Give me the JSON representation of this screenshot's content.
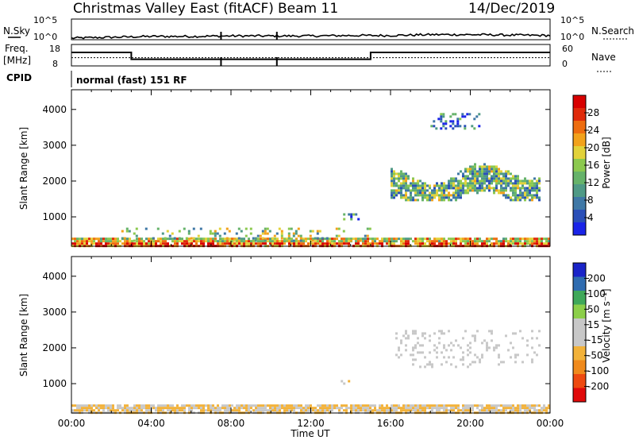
{
  "header": {
    "station": "Christmas Valley East (fitACF)",
    "beam": "Beam 11",
    "date": "14/Dec/2019"
  },
  "params": {
    "nsky_label": "N.Sky",
    "nsearch_label": "N.Search",
    "freq_label": "Freq.",
    "freq_unit": "[MHz]",
    "cpid_label": "CPID",
    "nave_label": "Nave",
    "cpid_value": "normal (fast) 151 RF",
    "noise_ticks": [
      "10^5",
      "10^0"
    ],
    "noise_right_ticks": [
      "10^5",
      "10^0"
    ],
    "freq_ticks": [
      "18",
      "8"
    ],
    "nave_ticks": [
      "60",
      "0"
    ]
  },
  "colors": {
    "power_scale": [
      "#1a24e8",
      "#2a4fb8",
      "#3f78a6",
      "#4f9a86",
      "#66b36a",
      "#8cc94f",
      "#e2d23a",
      "#f2a21c",
      "#ee6d10",
      "#e02a0a",
      "#d80000"
    ],
    "velocity_scale": [
      "#e00a0a",
      "#ee4a10",
      "#f08a1c",
      "#f2b23a",
      "#c8c8c8",
      "#c8c8c8",
      "#8ccf4a",
      "#3fa85a",
      "#2f6cb0",
      "#1a24c8"
    ],
    "ground_grey": "#c0c0c0"
  },
  "chart_data": [
    {
      "type": "line",
      "name": "noise",
      "x_range": [
        0,
        24
      ],
      "description_series": [
        {
          "name": "N.Sky",
          "x": [
            0,
            2,
            4,
            6,
            8,
            10,
            12,
            14,
            16,
            18,
            20,
            22,
            24
          ],
          "y": [
            1.0,
            1.2,
            1.4,
            1.4,
            1.5,
            1.5,
            1.5,
            1.6,
            1.6,
            1.8,
            1.8,
            1.7,
            1.6
          ]
        },
        {
          "name": "N.Search",
          "x": [
            0,
            24
          ],
          "y": [
            1.0,
            1.0
          ]
        }
      ]
    },
    {
      "type": "line",
      "name": "frequency",
      "x_range": [
        0,
        24
      ],
      "series": [
        {
          "name": "Freq.",
          "x": [
            0,
            3.0,
            3.0,
            15.0,
            15.0,
            24
          ],
          "y": [
            14.5,
            14.5,
            10.8,
            10.8,
            14.5,
            14.5
          ]
        },
        {
          "name": "Nave",
          "x": [
            0,
            24
          ],
          "y": [
            22,
            22
          ]
        }
      ]
    },
    {
      "type": "heatmap",
      "title": "",
      "xlabel": "Time UT",
      "ylabel": "Slant Range [km]",
      "x_ticks": [
        "00:00",
        "04:00",
        "08:00",
        "12:00",
        "16:00",
        "20:00",
        "00:00"
      ],
      "y_ticks": [
        1000,
        2000,
        3000,
        4000
      ],
      "xlim": [
        0,
        24
      ],
      "ylim": [
        180,
        4550
      ],
      "colorbar": {
        "label": "Power [dB]",
        "ticks": [
          4,
          8,
          12,
          16,
          20,
          24,
          28
        ],
        "range": [
          0,
          30
        ]
      },
      "regions": [
        {
          "x": [
            0,
            24
          ],
          "y": [
            200,
            420
          ],
          "value": 18
        },
        {
          "x": [
            2.5,
            15
          ],
          "y": [
            350,
            700
          ],
          "value": 14
        },
        {
          "x": [
            16,
            23.5
          ],
          "y": [
            1500,
            2500
          ],
          "value": 12
        },
        {
          "x": [
            13.5,
            14.5
          ],
          "y": [
            950,
            1100
          ],
          "value": 8
        },
        {
          "x": [
            18,
            20.5
          ],
          "y": [
            3500,
            3900
          ],
          "value": 6
        }
      ]
    },
    {
      "type": "heatmap",
      "title": "",
      "xlabel": "Time UT",
      "ylabel": "Slant Range [km]",
      "x_ticks": [
        "00:00",
        "04:00",
        "08:00",
        "12:00",
        "16:00",
        "20:00",
        "00:00"
      ],
      "y_ticks": [
        1000,
        2000,
        3000,
        4000
      ],
      "xlim": [
        0,
        24
      ],
      "ylim": [
        180,
        4550
      ],
      "colorbar": {
        "label": "Velocity [m s⁻¹]",
        "ticks": [
          200,
          100,
          50,
          15,
          -15,
          -50,
          -100,
          -200
        ],
        "range": [
          -250,
          250
        ]
      },
      "regions": [
        {
          "x": [
            0,
            24
          ],
          "y": [
            200,
            420
          ],
          "value": -50
        },
        {
          "x": [
            16,
            23.5
          ],
          "y": [
            1500,
            2500
          ],
          "value": 0
        },
        {
          "x": [
            13.5,
            14.5
          ],
          "y": [
            950,
            1100
          ],
          "value": -50
        }
      ]
    }
  ]
}
